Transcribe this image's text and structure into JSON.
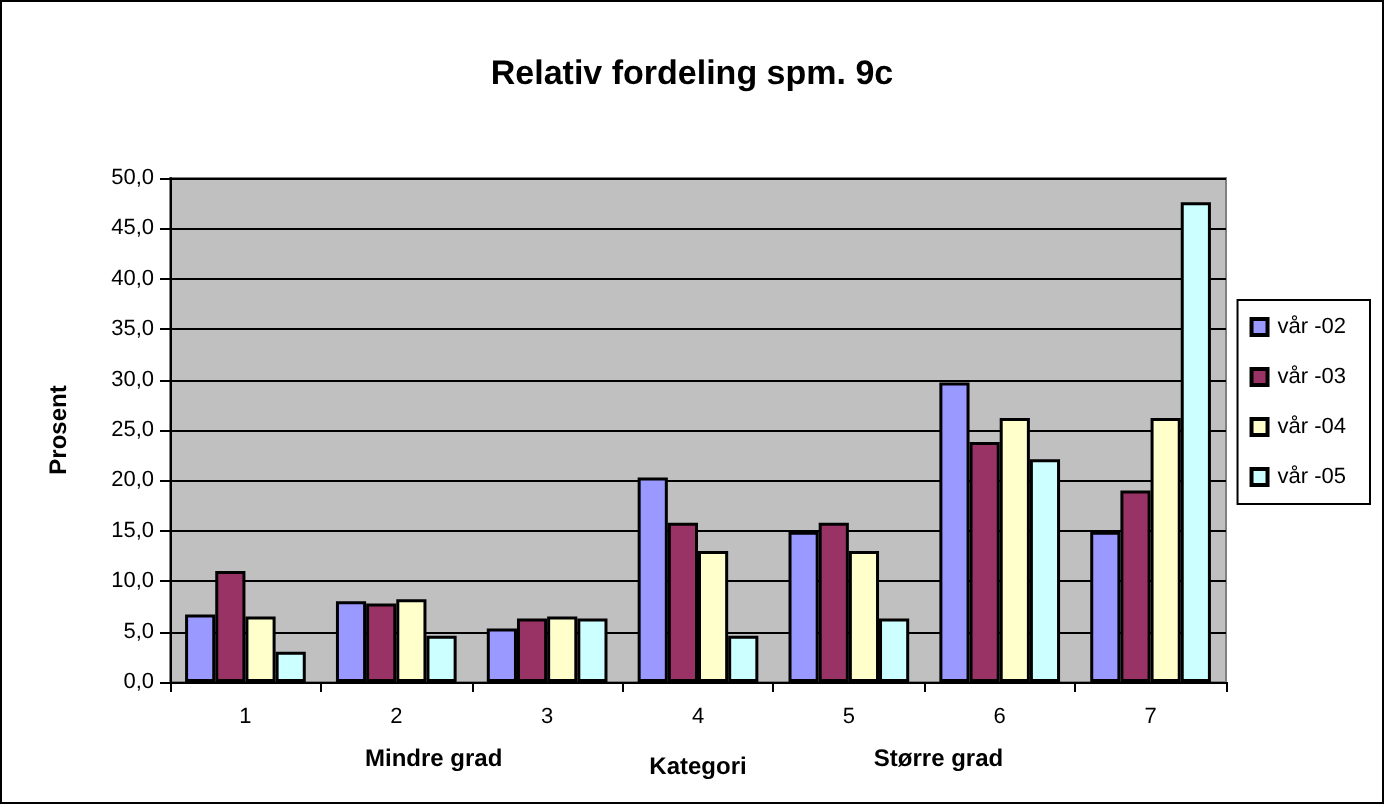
{
  "chart_data": {
    "type": "bar",
    "title": "Relativ fordeling spm. 9c",
    "xlabel": "Kategori",
    "ylabel": "Prosent",
    "annotations": [
      "Mindre grad",
      "Større grad"
    ],
    "categories": [
      "1",
      "2",
      "3",
      "4",
      "5",
      "6",
      "7"
    ],
    "series": [
      {
        "name": "vår -02",
        "color": "#9999ff",
        "values": [
          6.7,
          8.0,
          5.3,
          20.3,
          14.9,
          29.7,
          14.9
        ]
      },
      {
        "name": "vår -03",
        "color": "#993366",
        "values": [
          11.0,
          7.8,
          6.3,
          15.8,
          15.8,
          23.8,
          19.0
        ]
      },
      {
        "name": "vår -04",
        "color": "#ffffcc",
        "values": [
          6.5,
          8.2,
          6.5,
          13.0,
          13.0,
          26.2,
          26.2
        ]
      },
      {
        "name": "vår -05",
        "color": "#ccffff",
        "values": [
          3.0,
          4.6,
          6.3,
          4.6,
          6.3,
          22.1,
          47.6
        ]
      }
    ],
    "ylim": [
      0,
      50
    ],
    "yticks": [
      {
        "value": 0,
        "label": "0,0"
      },
      {
        "value": 5,
        "label": "5,0"
      },
      {
        "value": 10,
        "label": "10,0"
      },
      {
        "value": 15,
        "label": "15,0"
      },
      {
        "value": 20,
        "label": "20,0"
      },
      {
        "value": 25,
        "label": "25,0"
      },
      {
        "value": 30,
        "label": "30,0"
      },
      {
        "value": 35,
        "label": "35,0"
      },
      {
        "value": 40,
        "label": "40,0"
      },
      {
        "value": 45,
        "label": "45,0"
      },
      {
        "value": 50,
        "label": "50,0"
      }
    ],
    "grid": "y",
    "legend": "right"
  }
}
